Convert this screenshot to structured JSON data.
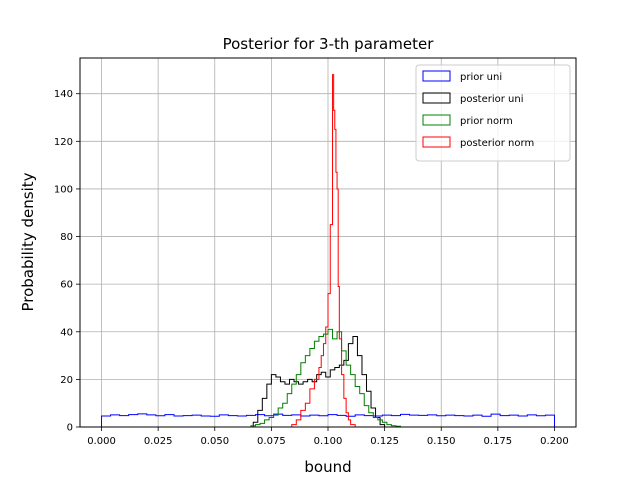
{
  "chart_data": {
    "type": "histogram",
    "title": "Posterior for 3-th parameter",
    "xlabel": "bound",
    "ylabel": "Probability density",
    "xlim": [
      -0.0095,
      0.2095
    ],
    "ylim": [
      0,
      155
    ],
    "xticks": [
      0.0,
      0.025,
      0.05,
      0.075,
      0.1,
      0.125,
      0.15,
      0.175,
      0.2
    ],
    "xtick_labels": [
      "0.000",
      "0.025",
      "0.050",
      "0.075",
      "0.100",
      "0.125",
      "0.150",
      "0.175",
      "0.200"
    ],
    "yticks": [
      0,
      20,
      40,
      60,
      80,
      100,
      120,
      140
    ],
    "ytick_labels": [
      "0",
      "20",
      "40",
      "60",
      "80",
      "100",
      "120",
      "140"
    ],
    "grid": true,
    "legend_position": "top-right",
    "series": [
      {
        "name": "prior uni",
        "color": "#0000ff",
        "edges": [
          0.0,
          0.004,
          0.008,
          0.012,
          0.016,
          0.02,
          0.024,
          0.028,
          0.032,
          0.036,
          0.04,
          0.044,
          0.048,
          0.052,
          0.056,
          0.06,
          0.064,
          0.068,
          0.072,
          0.076,
          0.08,
          0.084,
          0.088,
          0.092,
          0.096,
          0.1,
          0.104,
          0.108,
          0.112,
          0.116,
          0.12,
          0.124,
          0.128,
          0.132,
          0.136,
          0.14,
          0.144,
          0.148,
          0.152,
          0.156,
          0.16,
          0.164,
          0.168,
          0.172,
          0.176,
          0.18,
          0.184,
          0.188,
          0.192,
          0.196,
          0.2
        ],
        "values": [
          4.6,
          5.1,
          4.8,
          5.2,
          5.5,
          5.1,
          4.7,
          5.2,
          4.6,
          4.8,
          5.0,
          4.6,
          4.5,
          5.1,
          4.8,
          4.6,
          4.9,
          5.2,
          4.7,
          5.4,
          4.9,
          5.1,
          4.6,
          5.0,
          4.7,
          5.2,
          4.9,
          4.5,
          5.1,
          4.8,
          4.6,
          5.0,
          4.8,
          5.3,
          5.0,
          4.9,
          5.1,
          4.7,
          5.0,
          4.8,
          4.6,
          5.0,
          4.5,
          5.4,
          4.8,
          5.0,
          4.6,
          5.1,
          4.7,
          5.0
        ]
      },
      {
        "name": "posterior uni",
        "color": "#000000",
        "edges": [
          0.067,
          0.069,
          0.071,
          0.073,
          0.075,
          0.077,
          0.079,
          0.081,
          0.083,
          0.085,
          0.087,
          0.089,
          0.091,
          0.093,
          0.095,
          0.097,
          0.099,
          0.101,
          0.103,
          0.105,
          0.107,
          0.109,
          0.111,
          0.113,
          0.115,
          0.117,
          0.119,
          0.121,
          0.123,
          0.125
        ],
        "values": [
          2,
          7,
          12,
          18,
          22,
          21,
          19,
          18,
          20,
          19,
          18,
          19,
          20,
          19,
          22,
          23,
          21,
          24,
          25,
          26,
          28,
          35,
          38,
          30,
          22,
          15,
          8,
          4,
          1
        ]
      },
      {
        "name": "prior norm",
        "color": "#008000",
        "edges": [
          0.066,
          0.068,
          0.07,
          0.072,
          0.074,
          0.076,
          0.078,
          0.08,
          0.082,
          0.084,
          0.086,
          0.088,
          0.09,
          0.092,
          0.094,
          0.096,
          0.098,
          0.1,
          0.102,
          0.104,
          0.106,
          0.108,
          0.11,
          0.112,
          0.114,
          0.116,
          0.118,
          0.12,
          0.122,
          0.124,
          0.126,
          0.128,
          0.13,
          0.132
        ],
        "values": [
          0.5,
          1,
          1.5,
          3,
          4,
          5,
          8,
          10,
          14,
          18,
          22,
          27,
          30,
          33,
          36,
          38,
          39,
          41,
          37,
          40,
          32,
          26,
          22,
          17,
          14,
          9,
          6,
          4,
          3,
          2,
          1,
          0.5,
          0.3
        ]
      },
      {
        "name": "posterior norm",
        "color": "#ff0000",
        "edges": [
          0.084,
          0.086,
          0.088,
          0.09,
          0.092,
          0.094,
          0.096,
          0.097,
          0.098,
          0.099,
          0.1,
          0.101,
          0.102,
          0.1025,
          0.103,
          0.1035,
          0.104,
          0.1045,
          0.105,
          0.106,
          0.107,
          0.108,
          0.109,
          0.11,
          0.112
        ],
        "values": [
          1,
          3,
          7,
          10,
          16,
          20,
          25,
          30,
          35,
          42,
          56,
          85,
          148,
          133,
          125,
          107,
          100,
          59,
          37,
          22,
          12,
          6,
          3,
          1
        ]
      }
    ]
  }
}
